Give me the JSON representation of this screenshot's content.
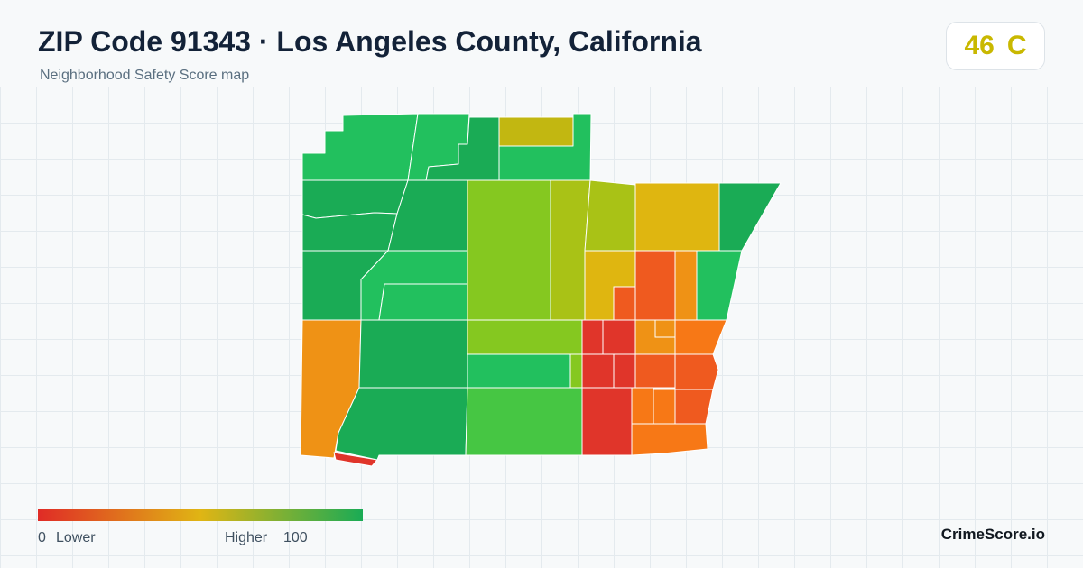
{
  "header": {
    "title": "ZIP Code 91343 · Los Angeles County, California",
    "subtitle": "Neighborhood Safety Score map"
  },
  "score_badge": {
    "value": "46",
    "grade": "C",
    "color": "#c9b800"
  },
  "legend": {
    "min_label": "0",
    "min_text": "Lower",
    "max_text": "Higher",
    "max_label": "100",
    "color_low": "#e02b26",
    "color_mid": "#e0b514",
    "color_high": "#1aab55"
  },
  "brand": "CrimeScore.io",
  "map": {
    "region_colors": {
      "dark_green": "#1aab55",
      "green": "#22c05e",
      "light_green": "#46c643",
      "yellow_green": "#85c820",
      "olive": "#a9c216",
      "mustard": "#c2b711",
      "yellow": "#dfb610",
      "orange": "#ef9215",
      "dark_orange": "#f77816",
      "red_orange": "#ef5a1f",
      "red": "#e0352a"
    }
  }
}
